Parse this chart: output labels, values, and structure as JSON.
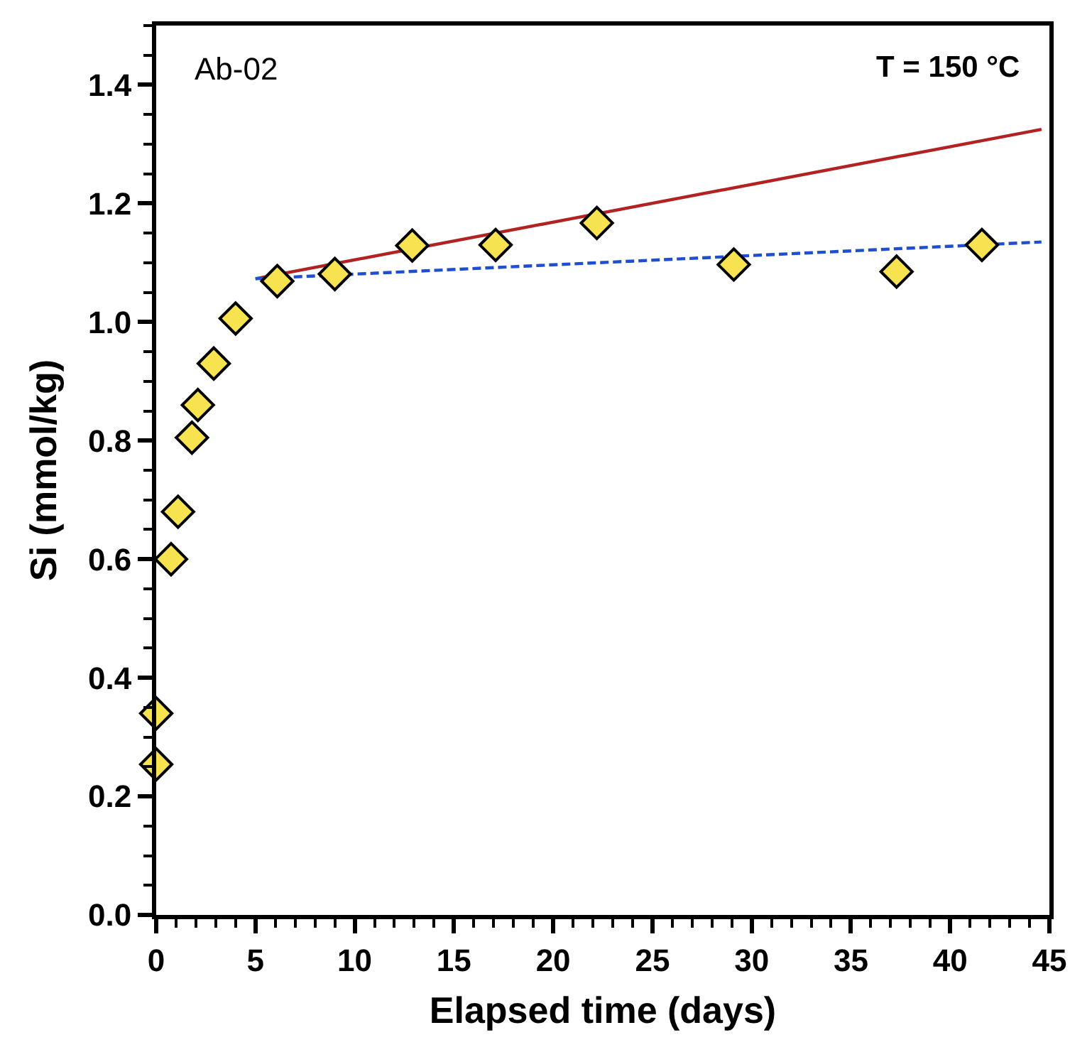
{
  "chart_data": {
    "type": "scatter",
    "xlabel": "Elapsed time (days)",
    "ylabel": "Si (mmol/kg)",
    "annotations": [
      "Ab-02",
      "T = 150 °C"
    ],
    "xlim": [
      0,
      45
    ],
    "xticks": [
      0,
      5,
      10,
      15,
      20,
      25,
      30,
      35,
      40,
      45
    ],
    "ylim": [
      0,
      1.5
    ],
    "yticks": [
      {
        "value": 0,
        "label": "0.0"
      },
      0.2,
      0.4,
      0.6,
      0.8,
      {
        "value": 1,
        "label": "1.0"
      },
      1.2,
      1.4
    ],
    "series": [
      {
        "type": "line",
        "color": "#b22222",
        "line_style": "solid",
        "x": [
          5,
          44.6
        ],
        "values": [
          1.073,
          1.325
        ]
      },
      {
        "type": "line",
        "color": "#1f4fcf",
        "line_style": "dashed",
        "x": [
          5,
          44.6
        ],
        "values": [
          1.073,
          1.135
        ]
      },
      {
        "color": "#f7e34f",
        "marker": "diamond",
        "x": [
          0,
          0,
          0.75,
          1.1,
          1.8,
          2.1,
          2.9,
          4.0,
          6.1,
          9.0,
          12.9,
          17.1,
          22.2,
          29.1,
          37.3,
          41.6
        ],
        "values": [
          0.254,
          0.34,
          0.6,
          0.68,
          0.805,
          0.86,
          0.93,
          1.006,
          1.069,
          1.081,
          1.129,
          1.13,
          1.167,
          1.097,
          1.085,
          1.13
        ]
      }
    ]
  }
}
